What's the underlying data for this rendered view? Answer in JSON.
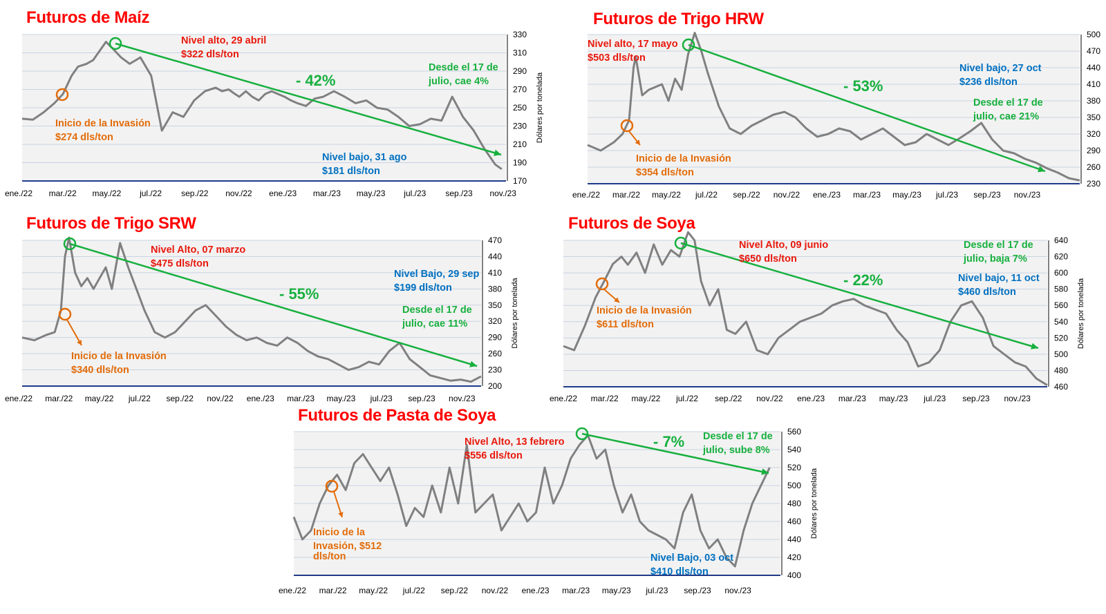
{
  "colors": {
    "series": "#808080",
    "high": "#e8180c",
    "low": "#0070c0",
    "invasion": "#e36c09",
    "trend": "#17b03e",
    "baseline": "#1f3a8a",
    "plot_bg": "#f2f2f2",
    "grid": "#c9d1e3"
  },
  "chart_data": [
    {
      "id": "maiz",
      "type": "line",
      "title": "Futuros de Maíz",
      "ylabel": "Dólares por tonelada",
      "ylim": [
        170,
        330
      ],
      "yticks": [
        170,
        190,
        210,
        230,
        250,
        270,
        290,
        310,
        330
      ],
      "xticks": [
        "ene./22",
        "mar./22",
        "may./22",
        "jul./22",
        "sep./22",
        "nov./22",
        "ene./23",
        "mar./23",
        "may./23",
        "jul./23",
        "sep./23",
        "nov./23"
      ],
      "series": [
        {
          "x": [
            0,
            0.5,
            1,
            1.5,
            1.9,
            2.3,
            2.6,
            3,
            3.3,
            3.6,
            3.9,
            4.2,
            4.6,
            5,
            5.5,
            6,
            6.5,
            7,
            7.5,
            8,
            8.5,
            9,
            9.3,
            9.6,
            9.9,
            10.1,
            10.4,
            10.7,
            11,
            11.3,
            11.6,
            11.9,
            12.2,
            12.5,
            12.8,
            13.2,
            13.6,
            14,
            14.5,
            15,
            15.5,
            16,
            16.5,
            17,
            17.5,
            18,
            18.5,
            19,
            19.5,
            20,
            20.5,
            21,
            21.5,
            22,
            22.3
          ],
          "y": [
            238,
            237,
            245,
            255,
            265,
            285,
            295,
            298,
            302,
            312,
            322,
            315,
            305,
            298,
            305,
            285,
            225,
            245,
            240,
            258,
            268,
            272,
            268,
            270,
            265,
            262,
            268,
            262,
            258,
            265,
            268,
            265,
            262,
            258,
            255,
            252,
            260,
            262,
            268,
            262,
            255,
            258,
            250,
            248,
            240,
            230,
            232,
            238,
            236,
            262,
            240,
            225,
            205,
            188,
            183
          ]
        }
      ],
      "trend_pct": "- 42%",
      "annotations": {
        "high": [
          "Nivel alto, 29 abril",
          "$322 dls/ton"
        ],
        "invasion": [
          "Inicio de la Invasión",
          "$274 dls/ton"
        ],
        "low": [
          "Nivel bajo, 31 ago",
          "$181 dls/ton"
        ],
        "since": [
          "Desde el 17 de",
          "julio, cae 4%"
        ]
      }
    },
    {
      "id": "hrw",
      "type": "line",
      "title": "Futuros de Trigo HRW",
      "ylabel": "Dólares por tonelada",
      "ylim": [
        230,
        500
      ],
      "yticks": [
        230,
        260,
        290,
        320,
        350,
        380,
        410,
        440,
        470,
        500
      ],
      "xticks": [
        "ene./22",
        "mar./22",
        "may./22",
        "jul./22",
        "sep./22",
        "nov./22",
        "ene./23",
        "mar./23",
        "may./23",
        "jul./23",
        "sep./23",
        "nov./23"
      ],
      "series": [
        {
          "x": [
            0,
            0.6,
            1.2,
            1.6,
            1.9,
            2.1,
            2.2,
            2.5,
            2.8,
            3.1,
            3.4,
            3.7,
            4,
            4.3,
            4.6,
            4.9,
            5.2,
            5.5,
            6,
            6.5,
            7,
            7.5,
            8,
            8.5,
            9,
            9.5,
            10,
            10.5,
            11,
            11.5,
            12,
            12.5,
            13,
            13.5,
            14,
            14.5,
            15,
            15.5,
            16,
            16.5,
            17,
            17.5,
            18,
            18.5,
            19,
            19.5,
            20,
            20.5,
            21,
            21.5,
            22,
            22.5
          ],
          "y": [
            300,
            290,
            305,
            320,
            345,
            440,
            460,
            390,
            400,
            405,
            410,
            380,
            420,
            400,
            465,
            503,
            470,
            430,
            370,
            330,
            320,
            335,
            345,
            355,
            360,
            350,
            330,
            315,
            320,
            330,
            325,
            310,
            320,
            330,
            315,
            300,
            305,
            320,
            310,
            300,
            312,
            325,
            340,
            310,
            290,
            285,
            275,
            268,
            258,
            250,
            240,
            236
          ]
        }
      ],
      "trend_pct": "- 53%",
      "annotations": {
        "high": [
          "Nivel alto, 17 mayo",
          "$503 dls/ton"
        ],
        "invasion": [
          "Inicio de la Invasión",
          "$354 dls/ton"
        ],
        "low": [
          "Nivel bajo, 27 oct",
          "$236 dls/ton"
        ],
        "since": [
          "Desde el 17 de",
          "julio, cae 21%"
        ]
      }
    },
    {
      "id": "srw",
      "type": "line",
      "title": "Futuros de Trigo SRW",
      "ylabel": "Dólares por tonelada",
      "ylim": [
        200,
        470
      ],
      "yticks": [
        200,
        230,
        260,
        290,
        320,
        350,
        380,
        410,
        440,
        470
      ],
      "xticks": [
        "ene./22",
        "mar./22",
        "may./22",
        "jul./22",
        "sep./22",
        "nov./22",
        "ene./23",
        "mar./23",
        "may./23",
        "jul./23",
        "sep./23",
        "nov./23"
      ],
      "series": [
        {
          "x": [
            0,
            0.6,
            1.2,
            1.6,
            1.9,
            2.1,
            2.3,
            2.6,
            2.9,
            3.2,
            3.5,
            3.8,
            4.1,
            4.4,
            4.8,
            5.2,
            5.6,
            6,
            6.5,
            7,
            7.5,
            8,
            8.5,
            9,
            9.5,
            10,
            10.5,
            11,
            11.5,
            12,
            12.5,
            13,
            13.5,
            14,
            14.5,
            15,
            15.5,
            16,
            16.5,
            17,
            17.5,
            18,
            18.5,
            19,
            19.5,
            20,
            20.5,
            21,
            21.5,
            22,
            22.5
          ],
          "y": [
            290,
            285,
            295,
            300,
            340,
            440,
            475,
            410,
            385,
            400,
            380,
            400,
            420,
            380,
            465,
            420,
            380,
            340,
            300,
            290,
            300,
            320,
            340,
            350,
            330,
            310,
            295,
            285,
            290,
            280,
            275,
            290,
            280,
            265,
            255,
            250,
            240,
            230,
            235,
            245,
            240,
            265,
            280,
            250,
            235,
            220,
            215,
            210,
            212,
            208,
            218
          ]
        }
      ],
      "trend_pct": "- 55%",
      "annotations": {
        "high": [
          "Nivel Alto, 07 marzo",
          "$475 dls/ton"
        ],
        "invasion": [
          "Inicio de la Invasión",
          "$340 dls/ton"
        ],
        "low": [
          "Nivel Bajo, 29 sep",
          "$199 dls/ton"
        ],
        "since": [
          "Desde el 17 de",
          "julio, cae 11%"
        ]
      }
    },
    {
      "id": "soya",
      "type": "line",
      "title": "Futuros de Soya",
      "ylabel": "Dólares por tonelada",
      "ylim": [
        460,
        640
      ],
      "yticks": [
        460,
        480,
        500,
        520,
        540,
        560,
        580,
        600,
        620,
        640
      ],
      "xticks": [
        "ene./22",
        "mar./22",
        "may./22",
        "jul./22",
        "sep./22",
        "nov./22",
        "ene./23",
        "mar./23",
        "may./23",
        "jul./23",
        "sep./23",
        "nov./23"
      ],
      "series": [
        {
          "x": [
            0,
            0.5,
            1,
            1.5,
            1.9,
            2.3,
            2.7,
            3,
            3.4,
            3.8,
            4.2,
            4.6,
            5,
            5.4,
            5.8,
            6.1,
            6.4,
            6.8,
            7.2,
            7.6,
            8,
            8.5,
            9,
            9.5,
            10,
            10.5,
            11,
            11.5,
            12,
            12.5,
            13,
            13.5,
            14,
            14.5,
            15,
            15.5,
            16,
            16.5,
            17,
            17.5,
            18,
            18.5,
            19,
            19.5,
            20,
            20.5,
            21,
            21.5,
            22,
            22.5
          ],
          "y": [
            510,
            505,
            535,
            570,
            590,
            611,
            620,
            610,
            625,
            600,
            635,
            610,
            628,
            620,
            650,
            640,
            590,
            560,
            580,
            530,
            525,
            540,
            505,
            500,
            520,
            530,
            540,
            545,
            550,
            560,
            565,
            568,
            560,
            555,
            550,
            530,
            515,
            485,
            490,
            505,
            540,
            560,
            565,
            545,
            510,
            500,
            490,
            485,
            470,
            462
          ]
        }
      ],
      "trend_pct": "- 22%",
      "annotations": {
        "high": [
          "Nivel Alto, 09 junio",
          "$650 dls/ton"
        ],
        "invasion": [
          "Inicio de la Invasión",
          "$611 dls/ton"
        ],
        "low": [
          "Nivel bajo, 11 oct",
          "$460 dls/ton"
        ],
        "since": [
          "Desde el 17 de",
          "julio, baja 7%"
        ]
      }
    },
    {
      "id": "pasta",
      "type": "line",
      "title": "Futuros de Pasta de Soya",
      "ylabel": "Dólares por tonelada",
      "ylim": [
        400,
        560
      ],
      "yticks": [
        400,
        420,
        440,
        460,
        480,
        500,
        520,
        540,
        560
      ],
      "xticks": [
        "ene./22",
        "mar./22",
        "may./22",
        "jul./22",
        "sep./22",
        "nov./22",
        "ene./23",
        "mar./23",
        "may./23",
        "jul./23",
        "sep./23",
        "nov./23"
      ],
      "series": [
        {
          "x": [
            0,
            0.4,
            0.8,
            1.2,
            1.6,
            2,
            2.4,
            2.8,
            3.2,
            3.6,
            4,
            4.4,
            4.8,
            5.2,
            5.6,
            6,
            6.4,
            6.8,
            7.2,
            7.6,
            8,
            8.4,
            8.8,
            9.2,
            9.6,
            10,
            10.4,
            10.8,
            11.2,
            11.6,
            12,
            12.4,
            12.8,
            13.2,
            13.6,
            14,
            14.4,
            14.8,
            15.2,
            15.6,
            16,
            16.4,
            16.8,
            17.2,
            17.6,
            18,
            18.4,
            18.8,
            19.2,
            19.6,
            20,
            20.4,
            20.8,
            21.2,
            21.6,
            22
          ],
          "y": [
            465,
            440,
            450,
            480,
            500,
            512,
            495,
            525,
            535,
            520,
            505,
            520,
            490,
            455,
            475,
            465,
            500,
            470,
            520,
            480,
            545,
            470,
            480,
            490,
            450,
            465,
            480,
            460,
            470,
            520,
            480,
            500,
            530,
            545,
            556,
            530,
            540,
            500,
            470,
            490,
            460,
            450,
            445,
            440,
            430,
            470,
            490,
            450,
            430,
            440,
            420,
            410,
            450,
            480,
            500,
            520
          ]
        }
      ],
      "trend_pct": "- 7%",
      "annotations": {
        "high": [
          "Nivel Alto, 13 febrero",
          "$556 dls/ton"
        ],
        "invasion": [
          "Inicio de la",
          "Invasión, $512",
          "dls/ton"
        ],
        "low": [
          "Nivel Bajo, 03 oct",
          "$410 dls/ton"
        ],
        "since": [
          "Desde el 17 de",
          "julio, sube 8%"
        ]
      }
    }
  ]
}
